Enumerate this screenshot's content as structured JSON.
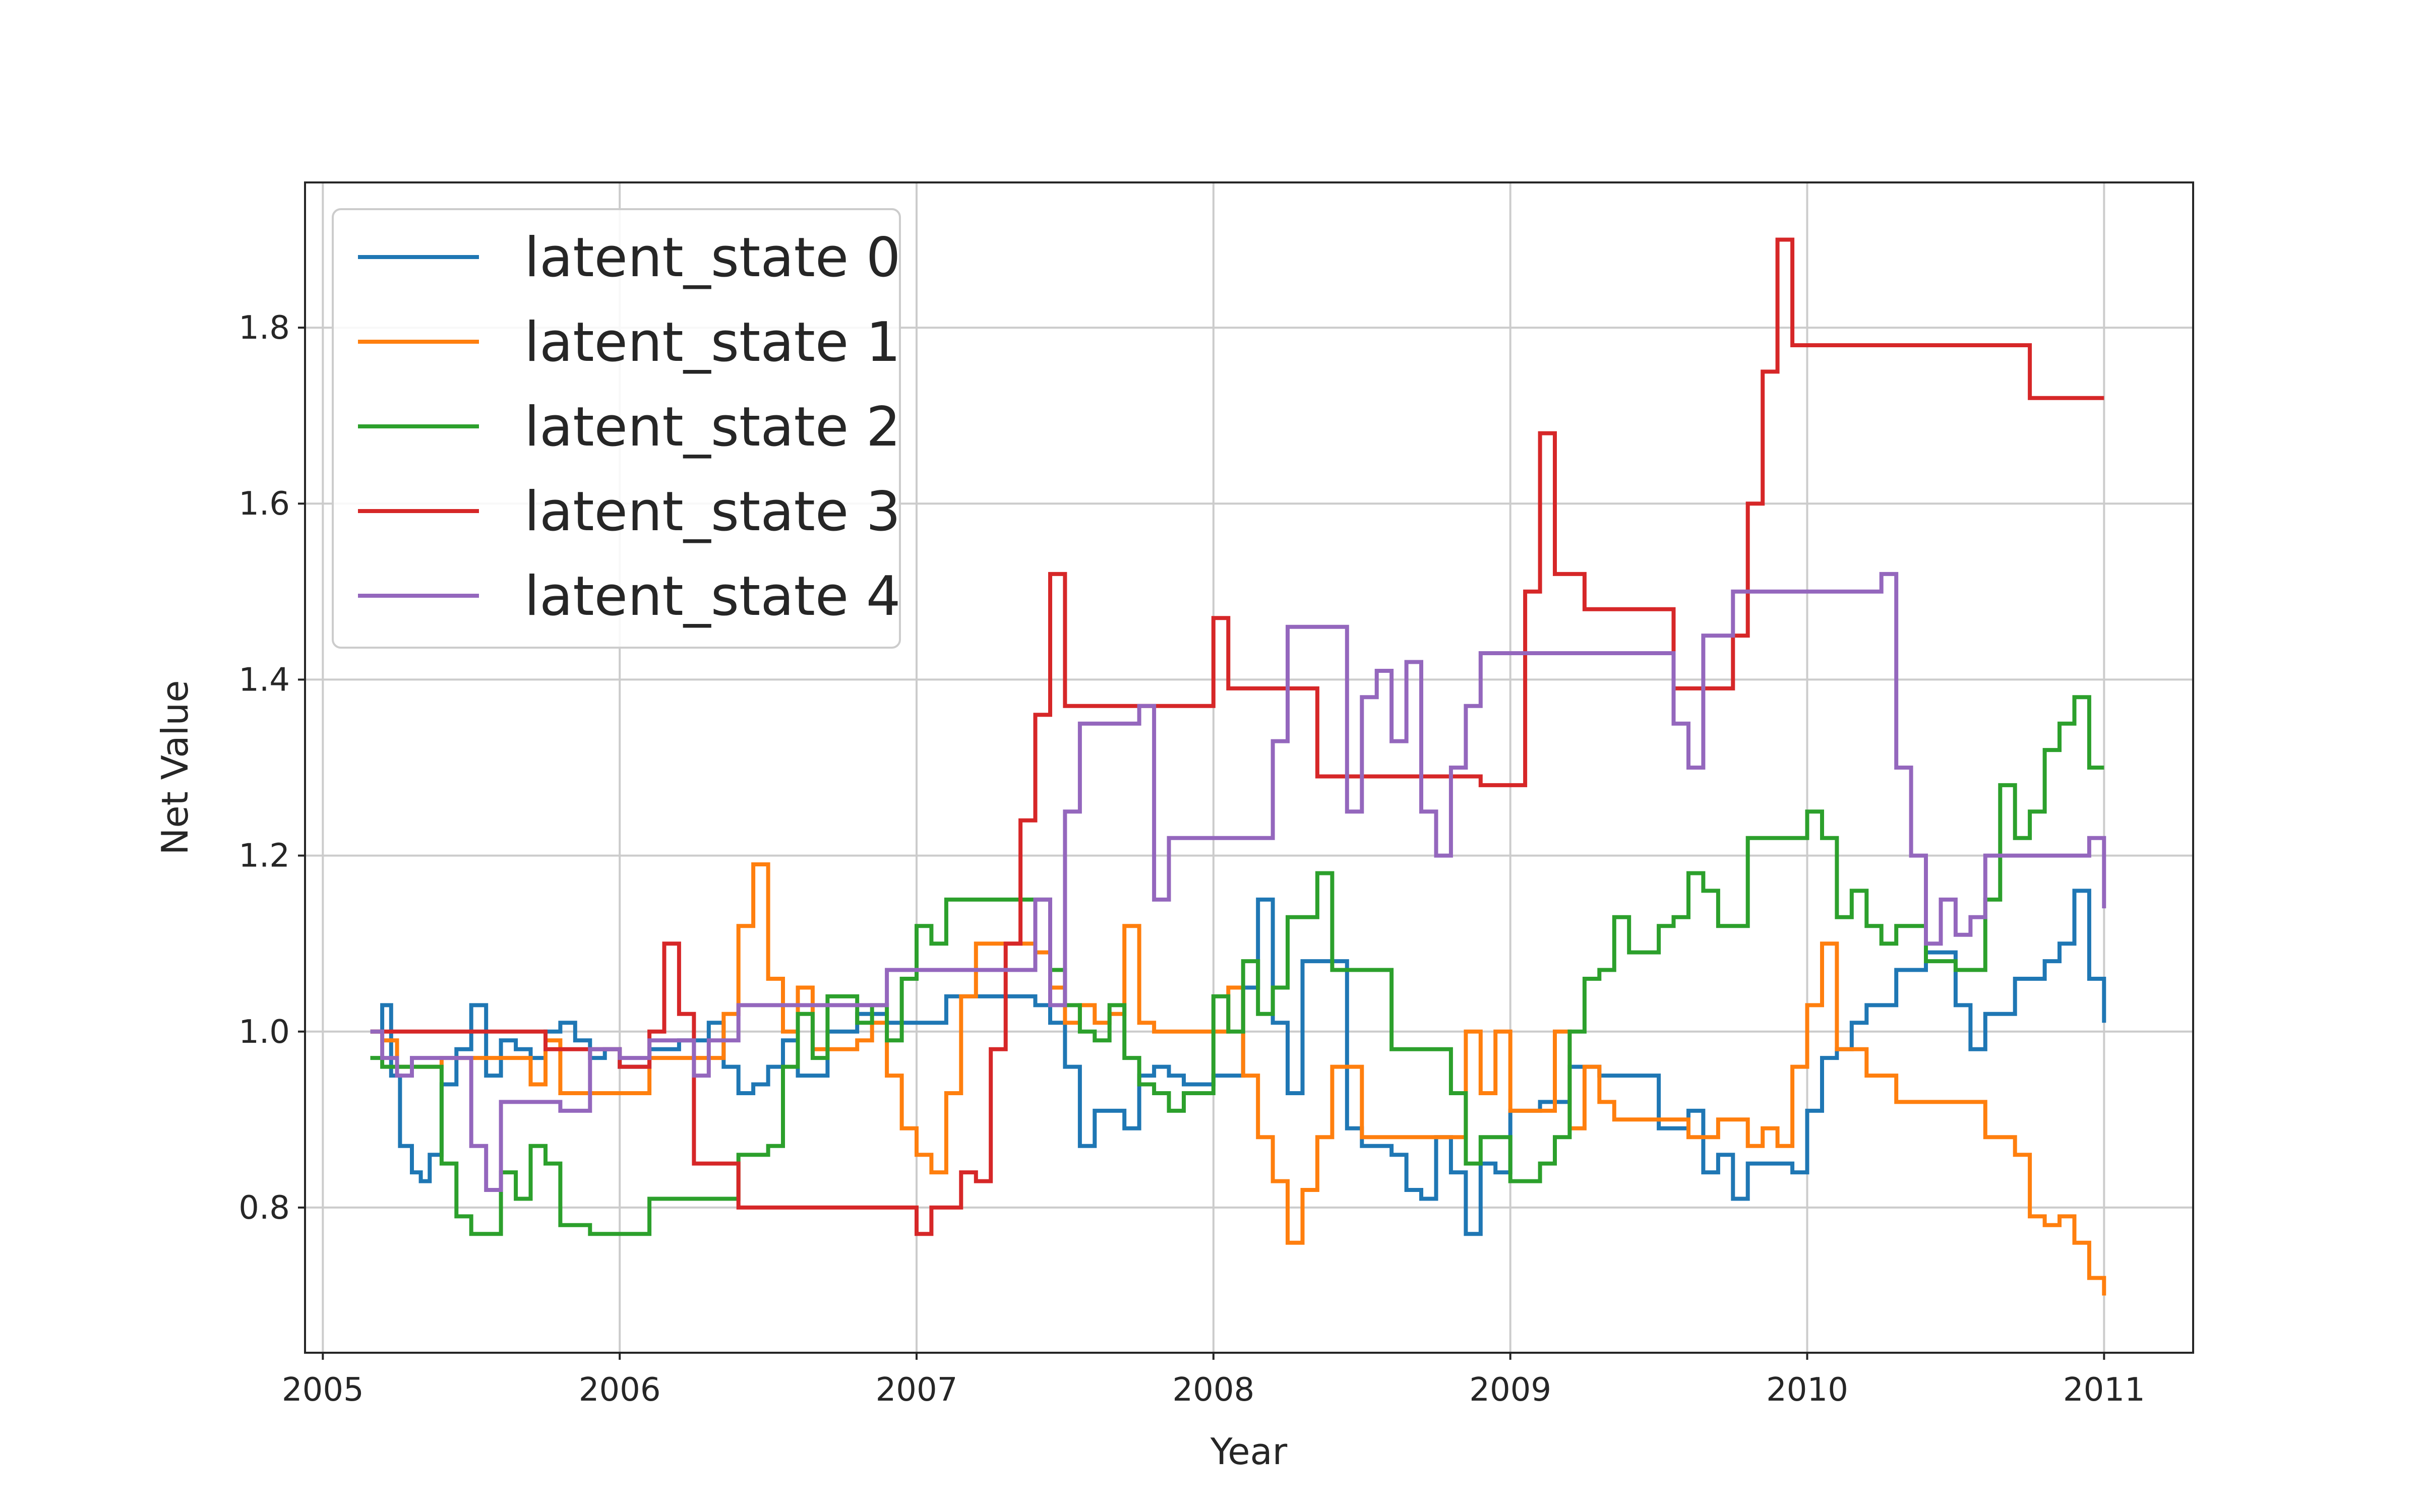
{
  "chart_data": {
    "type": "line",
    "title": "",
    "xlabel": "Year",
    "ylabel": "Net Value",
    "xlim": [
      2004.94,
      2011.3
    ],
    "ylim": [
      0.635,
      1.965
    ],
    "x_ticks": [
      2005,
      2006,
      2007,
      2008,
      2009,
      2010,
      2011
    ],
    "y_ticks": [
      0.8,
      1.0,
      1.2,
      1.4,
      1.6,
      1.8
    ],
    "x_tick_labels": [
      "2005",
      "2006",
      "2007",
      "2008",
      "2009",
      "2010",
      "2011"
    ],
    "y_tick_labels": [
      "0.8",
      "1.0",
      "1.2",
      "1.4",
      "1.6",
      "1.8"
    ],
    "grid": true,
    "legend_position": "top-left",
    "series": [
      {
        "name": "latent_state 0",
        "color": "#1f77b4",
        "x": [
          2005.16,
          2005.2,
          2005.23,
          2005.26,
          2005.3,
          2005.33,
          2005.36,
          2005.4,
          2005.45,
          2005.5,
          2005.55,
          2005.6,
          2005.65,
          2005.7,
          2005.75,
          2005.8,
          2005.85,
          2005.9,
          2005.95,
          2006.0,
          2006.1,
          2006.2,
          2006.25,
          2006.3,
          2006.35,
          2006.4,
          2006.45,
          2006.5,
          2006.55,
          2006.6,
          2006.7,
          2006.8,
          2006.9,
          2007.0,
          2007.1,
          2007.2,
          2007.3,
          2007.4,
          2007.45,
          2007.5,
          2007.55,
          2007.6,
          2007.7,
          2007.75,
          2007.8,
          2007.85,
          2007.9,
          2008.0,
          2008.1,
          2008.15,
          2008.2,
          2008.25,
          2008.3,
          2008.4,
          2008.45,
          2008.5,
          2008.6,
          2008.65,
          2008.7,
          2008.75,
          2008.8,
          2008.85,
          2008.9,
          2008.95,
          2009.0,
          2009.1,
          2009.2,
          2009.3,
          2009.4,
          2009.5,
          2009.6,
          2009.65,
          2009.7,
          2009.75,
          2009.8,
          2009.9,
          2009.95,
          2010.0,
          2010.05,
          2010.1,
          2010.15,
          2010.2,
          2010.3,
          2010.4,
          2010.5,
          2010.55,
          2010.6,
          2010.7,
          2010.8,
          2010.85,
          2010.9,
          2010.95,
          2011.0
        ],
        "y": [
          1.0,
          1.03,
          0.95,
          0.87,
          0.84,
          0.83,
          0.86,
          0.94,
          0.98,
          1.03,
          0.95,
          0.99,
          0.98,
          0.97,
          1.0,
          1.01,
          0.99,
          0.97,
          0.98,
          0.96,
          0.98,
          0.99,
          0.99,
          1.01,
          0.96,
          0.93,
          0.94,
          0.96,
          0.99,
          0.95,
          1.0,
          1.02,
          1.01,
          1.01,
          1.04,
          1.04,
          1.04,
          1.03,
          1.01,
          0.96,
          0.87,
          0.91,
          0.89,
          0.95,
          0.96,
          0.95,
          0.94,
          0.95,
          1.05,
          1.15,
          1.01,
          0.93,
          1.08,
          1.08,
          0.89,
          0.87,
          0.86,
          0.82,
          0.81,
          0.88,
          0.84,
          0.77,
          0.85,
          0.84,
          0.91,
          0.92,
          0.96,
          0.95,
          0.95,
          0.89,
          0.91,
          0.84,
          0.86,
          0.81,
          0.85,
          0.85,
          0.84,
          0.91,
          0.97,
          0.98,
          1.01,
          1.03,
          1.07,
          1.09,
          1.03,
          0.98,
          1.02,
          1.06,
          1.08,
          1.1,
          1.16,
          1.06,
          1.01
        ]
      },
      {
        "name": "latent_state 1",
        "color": "#ff7f0e",
        "x": [
          2005.16,
          2005.2,
          2005.25,
          2005.3,
          2005.4,
          2005.5,
          2005.6,
          2005.7,
          2005.75,
          2005.8,
          2005.9,
          2006.0,
          2006.1,
          2006.2,
          2006.3,
          2006.35,
          2006.4,
          2006.45,
          2006.5,
          2006.55,
          2006.6,
          2006.65,
          2006.7,
          2006.8,
          2006.85,
          2006.9,
          2006.95,
          2007.0,
          2007.05,
          2007.1,
          2007.15,
          2007.2,
          2007.3,
          2007.4,
          2007.45,
          2007.5,
          2007.55,
          2007.6,
          2007.65,
          2007.7,
          2007.75,
          2007.8,
          2007.85,
          2007.9,
          2008.0,
          2008.05,
          2008.1,
          2008.15,
          2008.2,
          2008.25,
          2008.3,
          2008.35,
          2008.4,
          2008.5,
          2008.6,
          2008.7,
          2008.8,
          2008.85,
          2008.9,
          2008.95,
          2009.0,
          2009.1,
          2009.15,
          2009.2,
          2009.25,
          2009.3,
          2009.35,
          2009.4,
          2009.5,
          2009.6,
          2009.7,
          2009.8,
          2009.85,
          2009.9,
          2009.95,
          2010.0,
          2010.05,
          2010.1,
          2010.2,
          2010.3,
          2010.4,
          2010.5,
          2010.6,
          2010.65,
          2010.7,
          2010.75,
          2010.8,
          2010.85,
          2010.9,
          2010.95,
          2011.0
        ],
        "y": [
          1.0,
          0.99,
          0.96,
          0.96,
          0.97,
          0.97,
          0.97,
          0.94,
          0.99,
          0.93,
          0.93,
          0.93,
          0.97,
          0.97,
          0.97,
          1.02,
          1.12,
          1.19,
          1.06,
          1.0,
          1.05,
          0.98,
          0.98,
          0.99,
          1.01,
          0.95,
          0.89,
          0.86,
          0.84,
          0.93,
          1.04,
          1.1,
          1.1,
          1.09,
          1.05,
          1.01,
          1.03,
          1.01,
          1.02,
          1.12,
          1.01,
          1.0,
          1.0,
          1.0,
          1.0,
          1.05,
          0.95,
          0.88,
          0.83,
          0.76,
          0.82,
          0.88,
          0.96,
          0.88,
          0.88,
          0.88,
          0.88,
          1.0,
          0.93,
          1.0,
          0.91,
          0.91,
          1.0,
          0.89,
          0.96,
          0.92,
          0.9,
          0.9,
          0.9,
          0.88,
          0.9,
          0.87,
          0.89,
          0.87,
          0.96,
          1.03,
          1.1,
          0.98,
          0.95,
          0.92,
          0.92,
          0.92,
          0.88,
          0.88,
          0.86,
          0.79,
          0.78,
          0.79,
          0.76,
          0.72,
          0.7
        ]
      },
      {
        "name": "latent_state 2",
        "color": "#2ca02c",
        "x": [
          2005.16,
          2005.2,
          2005.3,
          2005.4,
          2005.45,
          2005.5,
          2005.55,
          2005.6,
          2005.65,
          2005.7,
          2005.75,
          2005.8,
          2005.85,
          2005.9,
          2006.0,
          2006.1,
          2006.2,
          2006.3,
          2006.35,
          2006.4,
          2006.5,
          2006.55,
          2006.6,
          2006.65,
          2006.7,
          2006.8,
          2006.85,
          2006.9,
          2006.95,
          2007.0,
          2007.05,
          2007.1,
          2007.2,
          2007.3,
          2007.4,
          2007.45,
          2007.5,
          2007.55,
          2007.6,
          2007.65,
          2007.7,
          2007.75,
          2007.8,
          2007.85,
          2007.9,
          2008.0,
          2008.05,
          2008.1,
          2008.15,
          2008.2,
          2008.25,
          2008.3,
          2008.35,
          2008.4,
          2008.5,
          2008.6,
          2008.7,
          2008.8,
          2008.85,
          2008.9,
          2009.0,
          2009.1,
          2009.15,
          2009.2,
          2009.25,
          2009.3,
          2009.35,
          2009.4,
          2009.5,
          2009.55,
          2009.6,
          2009.65,
          2009.7,
          2009.8,
          2009.85,
          2009.9,
          2009.95,
          2010.0,
          2010.05,
          2010.1,
          2010.15,
          2010.2,
          2010.25,
          2010.3,
          2010.4,
          2010.5,
          2010.55,
          2010.6,
          2010.65,
          2010.7,
          2010.75,
          2010.8,
          2010.85,
          2010.9,
          2010.95,
          2011.0
        ],
        "y": [
          0.97,
          0.96,
          0.96,
          0.85,
          0.79,
          0.77,
          0.77,
          0.84,
          0.81,
          0.87,
          0.85,
          0.78,
          0.78,
          0.77,
          0.77,
          0.81,
          0.81,
          0.81,
          0.81,
          0.86,
          0.87,
          0.96,
          1.02,
          0.97,
          1.04,
          1.01,
          1.03,
          0.99,
          1.06,
          1.12,
          1.1,
          1.15,
          1.15,
          1.15,
          1.15,
          1.07,
          1.03,
          1.0,
          0.99,
          1.03,
          0.97,
          0.94,
          0.93,
          0.91,
          0.93,
          1.04,
          1.0,
          1.08,
          1.02,
          1.05,
          1.13,
          1.13,
          1.18,
          1.07,
          1.07,
          0.98,
          0.98,
          0.93,
          0.85,
          0.88,
          0.83,
          0.85,
          0.88,
          1.0,
          1.06,
          1.07,
          1.13,
          1.09,
          1.12,
          1.13,
          1.18,
          1.16,
          1.12,
          1.22,
          1.22,
          1.22,
          1.22,
          1.25,
          1.22,
          1.13,
          1.16,
          1.12,
          1.1,
          1.12,
          1.08,
          1.07,
          1.07,
          1.15,
          1.28,
          1.22,
          1.25,
          1.32,
          1.35,
          1.38,
          1.3,
          1.3
        ]
      },
      {
        "name": "latent_state 3",
        "color": "#d62728",
        "x": [
          2005.16,
          2005.3,
          2005.5,
          2005.7,
          2005.75,
          2005.9,
          2006.0,
          2006.1,
          2006.15,
          2006.2,
          2006.25,
          2006.3,
          2006.35,
          2006.4,
          2006.5,
          2006.55,
          2006.6,
          2006.7,
          2006.8,
          2006.9,
          2007.0,
          2007.05,
          2007.1,
          2007.15,
          2007.2,
          2007.25,
          2007.3,
          2007.35,
          2007.4,
          2007.45,
          2007.5,
          2007.6,
          2007.7,
          2007.8,
          2007.85,
          2007.9,
          2007.95,
          2008.0,
          2008.05,
          2008.1,
          2008.2,
          2008.3,
          2008.35,
          2008.4,
          2008.5,
          2008.6,
          2008.7,
          2008.8,
          2008.9,
          2009.0,
          2009.05,
          2009.1,
          2009.15,
          2009.2,
          2009.25,
          2009.3,
          2009.4,
          2009.5,
          2009.55,
          2009.6,
          2009.65,
          2009.7,
          2009.75,
          2009.8,
          2009.85,
          2009.9,
          2009.95,
          2010.0,
          2010.1,
          2010.2,
          2010.3,
          2010.4,
          2010.5,
          2010.6,
          2010.7,
          2010.75,
          2010.8,
          2010.9,
          2011.0
        ],
        "y": [
          1.0,
          1.0,
          1.0,
          1.0,
          0.98,
          0.98,
          0.96,
          1.0,
          1.1,
          1.02,
          0.85,
          0.85,
          0.85,
          0.8,
          0.8,
          0.8,
          0.8,
          0.8,
          0.8,
          0.8,
          0.77,
          0.8,
          0.8,
          0.84,
          0.83,
          0.98,
          1.1,
          1.24,
          1.36,
          1.52,
          1.37,
          1.37,
          1.37,
          1.37,
          1.37,
          1.37,
          1.37,
          1.47,
          1.39,
          1.39,
          1.39,
          1.39,
          1.29,
          1.29,
          1.29,
          1.29,
          1.29,
          1.29,
          1.28,
          1.28,
          1.5,
          1.68,
          1.52,
          1.52,
          1.48,
          1.48,
          1.48,
          1.48,
          1.39,
          1.39,
          1.39,
          1.39,
          1.45,
          1.6,
          1.75,
          1.9,
          1.78,
          1.78,
          1.78,
          1.78,
          1.78,
          1.78,
          1.78,
          1.78,
          1.78,
          1.72,
          1.72,
          1.72,
          1.72
        ]
      },
      {
        "name": "latent_state 4",
        "color": "#9467bd",
        "x": [
          2005.16,
          2005.2,
          2005.25,
          2005.3,
          2005.4,
          2005.45,
          2005.5,
          2005.55,
          2005.6,
          2005.7,
          2005.8,
          2005.9,
          2006.0,
          2006.1,
          2006.2,
          2006.25,
          2006.3,
          2006.4,
          2006.5,
          2006.6,
          2006.7,
          2006.8,
          2006.9,
          2007.0,
          2007.1,
          2007.2,
          2007.3,
          2007.4,
          2007.45,
          2007.5,
          2007.55,
          2007.6,
          2007.7,
          2007.75,
          2007.8,
          2007.85,
          2007.9,
          2008.0,
          2008.1,
          2008.2,
          2008.25,
          2008.3,
          2008.4,
          2008.45,
          2008.5,
          2008.55,
          2008.6,
          2008.65,
          2008.7,
          2008.75,
          2008.8,
          2008.85,
          2008.9,
          2009.0,
          2009.1,
          2009.2,
          2009.3,
          2009.4,
          2009.5,
          2009.55,
          2009.6,
          2009.65,
          2009.7,
          2009.75,
          2009.8,
          2009.9,
          2010.0,
          2010.1,
          2010.2,
          2010.25,
          2010.3,
          2010.35,
          2010.4,
          2010.45,
          2010.5,
          2010.55,
          2010.6,
          2010.7,
          2010.8,
          2010.85,
          2010.9,
          2010.95,
          2011.0
        ],
        "y": [
          1.0,
          0.97,
          0.95,
          0.97,
          0.97,
          0.97,
          0.87,
          0.82,
          0.92,
          0.92,
          0.91,
          0.98,
          0.97,
          0.99,
          0.99,
          0.95,
          0.99,
          1.03,
          1.03,
          1.03,
          1.03,
          1.03,
          1.07,
          1.07,
          1.07,
          1.07,
          1.07,
          1.15,
          1.03,
          1.25,
          1.35,
          1.35,
          1.35,
          1.37,
          1.15,
          1.22,
          1.22,
          1.22,
          1.22,
          1.33,
          1.46,
          1.46,
          1.46,
          1.25,
          1.38,
          1.41,
          1.33,
          1.42,
          1.25,
          1.2,
          1.3,
          1.37,
          1.43,
          1.43,
          1.43,
          1.43,
          1.43,
          1.43,
          1.43,
          1.35,
          1.3,
          1.45,
          1.45,
          1.5,
          1.5,
          1.5,
          1.5,
          1.5,
          1.5,
          1.52,
          1.3,
          1.2,
          1.1,
          1.15,
          1.11,
          1.13,
          1.2,
          1.2,
          1.2,
          1.2,
          1.2,
          1.22,
          1.14
        ]
      }
    ]
  }
}
